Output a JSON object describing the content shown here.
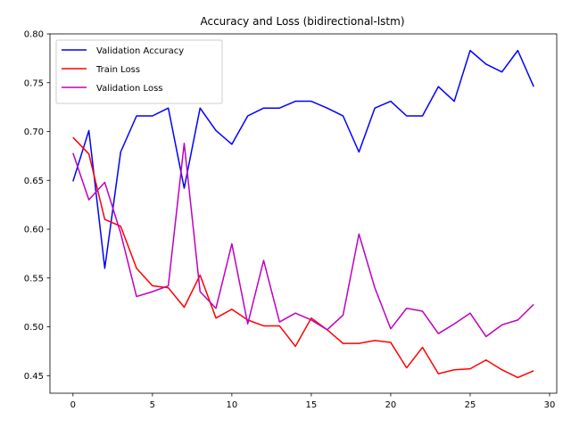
{
  "chart_data": {
    "type": "line",
    "title": "Accuracy and Loss (bidirectional-lstm)",
    "xlabel": "",
    "ylabel": "",
    "xlim": [
      -1.45,
      30.45
    ],
    "ylim": [
      0.432,
      0.8
    ],
    "xticks": [
      0,
      5,
      10,
      15,
      20,
      25,
      30
    ],
    "yticks": [
      0.45,
      0.5,
      0.55,
      0.6,
      0.65,
      0.7,
      0.75,
      0.8
    ],
    "ytick_labels": [
      "0.45",
      "0.50",
      "0.55",
      "0.60",
      "0.65",
      "0.70",
      "0.75",
      "0.80"
    ],
    "grid": false,
    "legend_position": "top-left",
    "x": [
      0,
      1,
      2,
      3,
      4,
      5,
      6,
      7,
      8,
      9,
      10,
      11,
      12,
      13,
      14,
      15,
      16,
      17,
      18,
      19,
      20,
      21,
      22,
      23,
      24,
      25,
      26,
      27,
      28,
      29
    ],
    "series": [
      {
        "name": "Validation Accuracy",
        "color": "#0000ff",
        "values": [
          0.649,
          0.701,
          0.56,
          0.679,
          0.716,
          0.716,
          0.724,
          0.642,
          0.724,
          0.701,
          0.687,
          0.716,
          0.724,
          0.724,
          0.731,
          0.731,
          0.724,
          0.716,
          0.679,
          0.724,
          0.731,
          0.716,
          0.716,
          0.746,
          0.731,
          0.783,
          0.769,
          0.761,
          0.783,
          0.746
        ]
      },
      {
        "name": "Train Loss",
        "color": "#ff0000",
        "values": [
          0.694,
          0.677,
          0.61,
          0.603,
          0.56,
          0.542,
          0.54,
          0.52,
          0.553,
          0.509,
          0.518,
          0.507,
          0.501,
          0.501,
          0.48,
          0.509,
          0.497,
          0.483,
          0.483,
          0.486,
          0.484,
          0.458,
          0.479,
          0.452,
          0.456,
          0.457,
          0.466,
          0.456,
          0.448,
          0.455
        ]
      },
      {
        "name": "Validation Loss",
        "color": "#bf00bf",
        "values": [
          0.678,
          0.63,
          0.648,
          0.596,
          0.531,
          0.536,
          0.542,
          0.688,
          0.536,
          0.519,
          0.585,
          0.503,
          0.568,
          0.505,
          0.514,
          0.507,
          0.497,
          0.512,
          0.595,
          0.54,
          0.498,
          0.519,
          0.516,
          0.493,
          0.503,
          0.514,
          0.49,
          0.502,
          0.507,
          0.523
        ]
      }
    ]
  }
}
